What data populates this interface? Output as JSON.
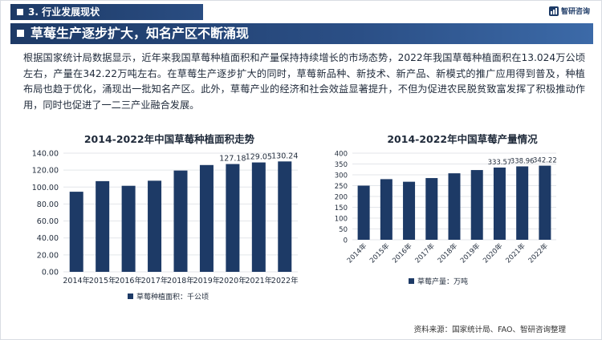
{
  "header": {
    "section": "3. 行业发展现状",
    "brand": "智研咨询"
  },
  "banner": {
    "title": "草莓生产逐步扩大，知名产区不断涌现"
  },
  "paragraph": "根据国家统计局数据显示，近年来我国草莓种植面积和产量保持持续增长的市场态势，2022年我国草莓种植面积在13.024万公顷左右，产量在342.22万吨左右。在草莓生产逐步扩大的同时，草莓新品种、新技术、新产品、新模式的推广应用得到普及，种植布局也趋于优化，涌现出一批知名产区。此外，草莓产业的经济和社会效益显著提升，不但为促进农民脱贫致富发挥了积极推动作用，同时也促进了一二三产业融合发展。",
  "colors": {
    "navy": "#1d3a66",
    "bar": "#1d3a66",
    "grid": "#e3e6ea",
    "text": "#1f2a3a"
  },
  "chart_data": [
    {
      "type": "bar",
      "title": "2014-2022年中国草莓种植面积走势",
      "categories": [
        "2014年",
        "2015年",
        "2016年",
        "2017年",
        "2018年",
        "2019年",
        "2020年",
        "2021年",
        "2022年"
      ],
      "series": [
        {
          "name": "草莓种植面积：千公顷",
          "values": [
            94.5,
            107.0,
            101.5,
            107.5,
            119.5,
            126.0,
            127.18,
            129.05,
            130.24
          ]
        }
      ],
      "data_labels": {
        "6": "127.18",
        "7": "129.05",
        "8": "130.24"
      },
      "yticks": [
        "0.00",
        "20.00",
        "40.00",
        "60.00",
        "80.00",
        "100.00",
        "120.00",
        "140.00"
      ],
      "ylim": [
        0,
        140
      ],
      "grid": true,
      "legend_position": "bottom"
    },
    {
      "type": "bar",
      "title": "2014-2022年中国草莓产量情况",
      "categories": [
        "2014年",
        "2015年",
        "2016年",
        "2017年",
        "2018年",
        "2019年",
        "2020年",
        "2021年",
        "2022年"
      ],
      "series": [
        {
          "name": "草莓产量：万吨",
          "values": [
            250,
            280,
            268,
            285,
            307,
            322,
            333.57,
            338.96,
            342.22
          ]
        }
      ],
      "data_labels": {
        "6": "333.57",
        "7": "338.96",
        "8": "342.22"
      },
      "yticks": [
        "0",
        "50",
        "100",
        "150",
        "200",
        "250",
        "300",
        "350",
        "400"
      ],
      "ylim": [
        0,
        400
      ],
      "grid": true,
      "legend_position": "bottom",
      "rotated_xlabels": true
    }
  ],
  "source": "资料来源：国家统计局、FAO、智研咨询整理"
}
